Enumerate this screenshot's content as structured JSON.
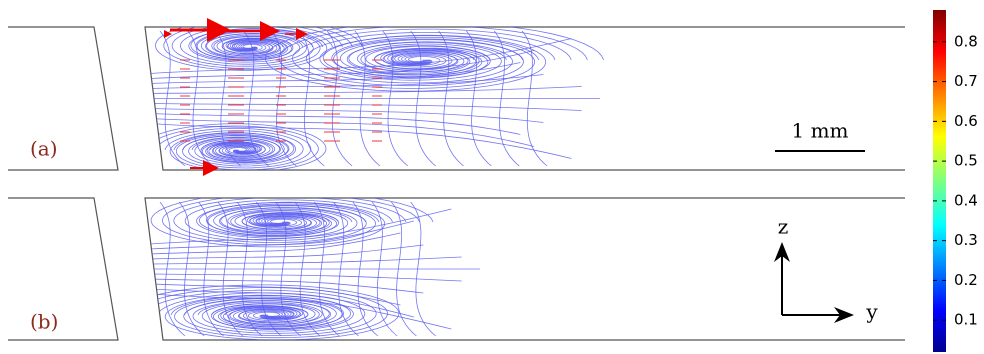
{
  "panels": [
    {
      "label": "(a)"
    },
    {
      "label": "(b)"
    }
  ],
  "scale_bar": "1 mm",
  "axes": {
    "vertical": "z",
    "horizontal": "y"
  },
  "colorbar": {
    "lim": [
      0.02,
      0.88
    ],
    "ticks": [
      0.1,
      0.2,
      0.3,
      0.4,
      0.5,
      0.6,
      0.7,
      0.8
    ]
  }
}
